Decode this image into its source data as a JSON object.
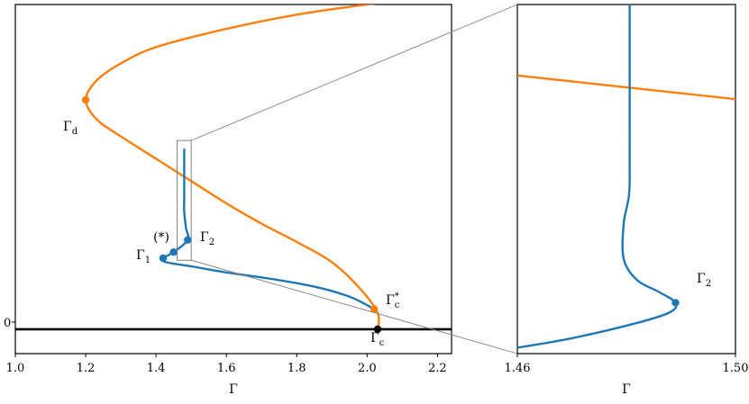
{
  "chart_data": [
    {
      "type": "line",
      "panel": "main",
      "xlabel": "Γ",
      "ylabel": "",
      "xlim": [
        1.0,
        2.24
      ],
      "ylim": [
        -0.06,
        0.8
      ],
      "xticks": [
        "1.0",
        "1.2",
        "1.4",
        "1.6",
        "1.8",
        "2.0",
        "2.2"
      ],
      "yticks": [
        "0"
      ],
      "grid": false,
      "colors": {
        "orange": "#ff7f0e",
        "blue": "#1f77b4",
        "black": "#000000",
        "inset": "#808080"
      },
      "series": [
        {
          "color": "#ff7f0e",
          "points": [
            [
              2.03,
              0.0
            ],
            [
              2.03,
              0.04
            ],
            [
              1.98,
              0.1
            ],
            [
              1.9,
              0.165
            ],
            [
              1.8,
              0.215
            ],
            [
              1.7,
              0.26
            ],
            [
              1.6,
              0.31
            ],
            [
              1.5,
              0.365
            ],
            [
              1.4,
              0.42
            ],
            [
              1.3,
              0.475
            ],
            [
              1.24,
              0.51
            ],
            [
              1.21,
              0.54
            ],
            [
              1.2,
              0.565
            ],
            [
              1.21,
              0.59
            ],
            [
              1.24,
              0.62
            ],
            [
              1.3,
              0.655
            ],
            [
              1.4,
              0.695
            ],
            [
              1.6,
              0.74
            ],
            [
              1.8,
              0.775
            ],
            [
              2.0,
              0.8
            ],
            [
              2.24,
              0.825
            ]
          ]
        },
        {
          "color": "#1f77b4",
          "points": [
            [
              2.02,
              0.05
            ],
            [
              1.95,
              0.08
            ],
            [
              1.85,
              0.105
            ],
            [
              1.72,
              0.125
            ],
            [
              1.6,
              0.14
            ],
            [
              1.5,
              0.155
            ],
            [
              1.43,
              0.165
            ],
            [
              1.42,
              0.175
            ],
            [
              1.45,
              0.19
            ],
            [
              1.49,
              0.22
            ],
            [
              1.485,
              0.25
            ],
            [
              1.48,
              0.29
            ],
            [
              1.48,
              0.33
            ],
            [
              1.48,
              0.39
            ],
            [
              1.48,
              0.445
            ]
          ]
        },
        {
          "color": "#000000",
          "points": [
            [
              1.0,
              0.0
            ],
            [
              2.24,
              0.0
            ]
          ]
        }
      ],
      "markers": [
        {
          "label": "Γ_d",
          "x": 1.2,
          "y": 0.565,
          "color": "#ff7f0e"
        },
        {
          "label": "Γ*_c",
          "x": 2.02,
          "y": 0.05,
          "color": "#ff7f0e"
        },
        {
          "label": "Γ_c",
          "x": 2.03,
          "y": 0.0,
          "color": "#000000"
        },
        {
          "label": "Γ_1",
          "x": 1.42,
          "y": 0.175,
          "color": "#1f77b4"
        },
        {
          "label": "Γ_2",
          "x": 1.49,
          "y": 0.22,
          "color": "#1f77b4"
        },
        {
          "label": "(*)",
          "x": 1.45,
          "y": 0.19,
          "color": "#1f77b4"
        }
      ],
      "inset_box": {
        "x": [
          1.46,
          1.5
        ],
        "y": [
          0.17,
          0.465
        ]
      },
      "annotations": {
        "gamma_d": "Γ",
        "gamma_d_sub": "d",
        "gamma_c_star": "Γ",
        "gamma_c_star_sub": "c",
        "gamma_c_star_sup": "*",
        "gamma_c": "Γ",
        "gamma_c_sub": "c",
        "gamma_1": "Γ",
        "gamma_1_sub": "1",
        "gamma_2": "Γ",
        "gamma_2_sub": "2",
        "star": "(*)"
      }
    },
    {
      "type": "line",
      "panel": "zoom",
      "xlabel": "Γ",
      "ylabel": "",
      "xlim": [
        1.46,
        1.5
      ],
      "xticks": [
        "1.46",
        "1.50"
      ],
      "grid": false,
      "series": [
        {
          "color": "#ff7f0e",
          "points": [
            [
              1.46,
              0.405
            ],
            [
              1.5,
              0.385
            ]
          ]
        },
        {
          "color": "#1f77b4",
          "points": [
            [
              1.46,
              0.175
            ],
            [
              1.47,
              0.183
            ],
            [
              1.482,
              0.196
            ],
            [
              1.488,
              0.205
            ],
            [
              1.489,
              0.213
            ],
            [
              1.486,
              0.222
            ],
            [
              1.482,
              0.232
            ],
            [
              1.4795,
              0.25
            ],
            [
              1.4795,
              0.28
            ],
            [
              1.4805,
              0.305
            ],
            [
              1.4806,
              0.34
            ],
            [
              1.4806,
              0.465
            ]
          ]
        }
      ],
      "markers": [
        {
          "label": "Γ_2",
          "x": 1.489,
          "y": 0.213,
          "color": "#1f77b4"
        }
      ],
      "annotations": {
        "gamma_2": "Γ",
        "gamma_2_sub": "2"
      }
    }
  ]
}
